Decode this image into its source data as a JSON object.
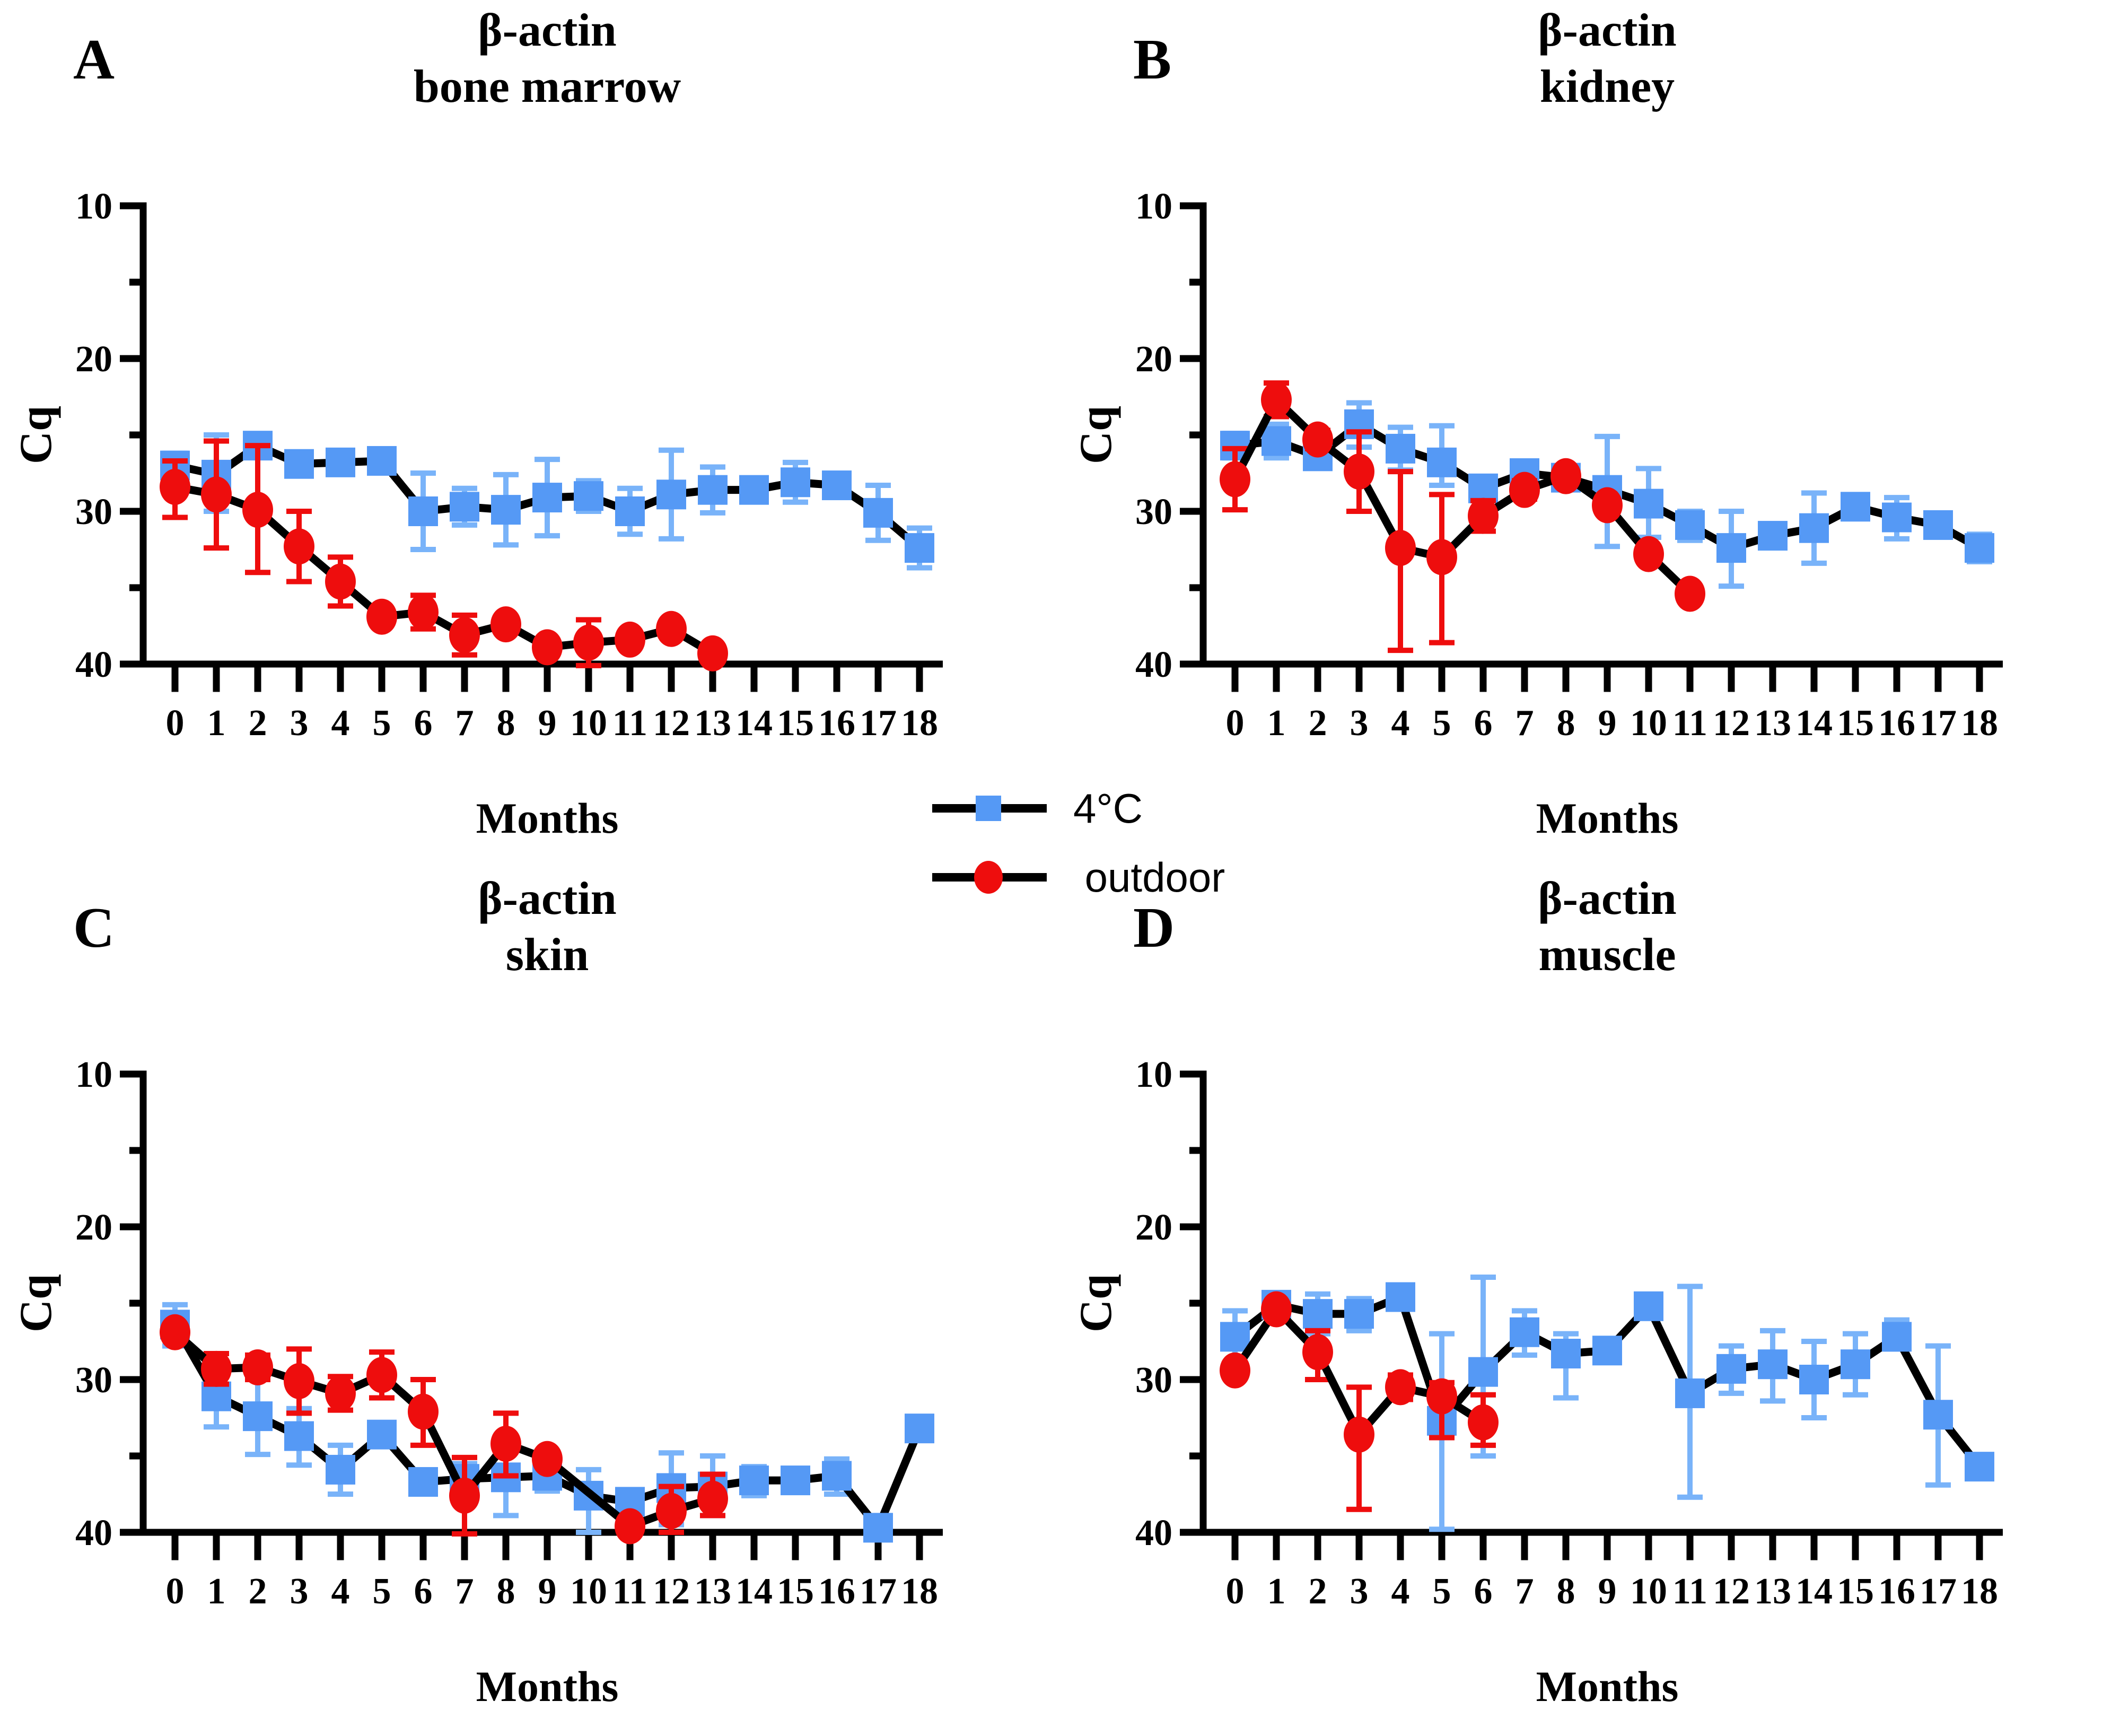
{
  "legend": {
    "items": [
      {
        "label": "4°C",
        "marker": "square",
        "color": "#5599F5",
        "line_color": "#000000"
      },
      {
        "label": " outdoor",
        "marker": "circle",
        "color": "#EE0D0D",
        "line_color": "#000000"
      }
    ]
  },
  "chart_data": [
    {
      "type": "line",
      "panel_label": "A",
      "title": [
        "β-actin",
        "bone marrow"
      ],
      "xlabel": "Months",
      "ylabel": "Cq",
      "ylim": [
        10,
        40
      ],
      "y_inverted": true,
      "yticks": [
        10,
        20,
        30,
        40
      ],
      "yminorticks": [
        15,
        25,
        35
      ],
      "xticks": [
        0,
        1,
        2,
        3,
        4,
        5,
        6,
        7,
        8,
        9,
        10,
        11,
        12,
        13,
        14,
        15,
        16,
        17,
        18
      ],
      "series": [
        {
          "name": "4°C",
          "marker": "square",
          "color": "#5599F5",
          "err_color": "#79B3F9",
          "points": [
            [
              0,
              27.0,
              26.2,
              27.8
            ],
            [
              1,
              27.6,
              25.0,
              30.0
            ],
            [
              2,
              25.7,
              25.2,
              26.3
            ],
            [
              3,
              26.9,
              26.5,
              27.3
            ],
            [
              4,
              26.8,
              26.1,
              27.5
            ],
            [
              5,
              26.7,
              26.3,
              27.1
            ],
            [
              6,
              30.0,
              27.5,
              32.5
            ],
            [
              7,
              29.7,
              28.5,
              30.9
            ],
            [
              8,
              29.9,
              27.6,
              32.2
            ],
            [
              9,
              29.1,
              26.6,
              31.6
            ],
            [
              10,
              29.0,
              28.0,
              30.0
            ],
            [
              11,
              30.0,
              28.5,
              31.5
            ],
            [
              12,
              28.9,
              26.0,
              31.8
            ],
            [
              13,
              28.6,
              27.1,
              30.1
            ],
            [
              14,
              28.6,
              28.1,
              29.1
            ],
            [
              15,
              28.1,
              26.8,
              29.4
            ],
            [
              16,
              28.3,
              27.7,
              28.9
            ],
            [
              17,
              30.1,
              28.3,
              31.9
            ],
            [
              18,
              32.4,
              31.1,
              33.7
            ]
          ]
        },
        {
          "name": "outdoor",
          "marker": "circle",
          "color": "#EE0D0D",
          "err_color": "#EE0D0D",
          "points": [
            [
              0,
              28.4,
              26.7,
              30.4
            ],
            [
              1,
              28.9,
              25.4,
              32.4
            ],
            [
              2,
              29.9,
              25.7,
              34.0
            ],
            [
              3,
              32.3,
              30.0,
              34.6
            ],
            [
              4,
              34.6,
              33.0,
              36.2
            ],
            [
              5,
              36.9,
              36.9,
              36.9
            ],
            [
              6,
              36.6,
              35.5,
              37.7
            ],
            [
              7,
              38.1,
              36.8,
              39.4
            ],
            [
              8,
              37.4,
              37.4,
              37.4
            ],
            [
              9,
              38.9,
              38.9,
              38.9
            ],
            [
              10,
              38.6,
              37.1,
              40.1
            ],
            [
              11,
              38.4,
              38.4,
              38.4
            ],
            [
              12,
              37.7,
              37.7,
              37.7
            ],
            [
              13,
              39.3,
              39.3,
              39.3
            ]
          ]
        }
      ]
    },
    {
      "type": "line",
      "panel_label": "B",
      "title": [
        "β-actin",
        "kidney"
      ],
      "xlabel": "Months",
      "ylabel": "Cq",
      "ylim": [
        10,
        40
      ],
      "y_inverted": true,
      "yticks": [
        10,
        20,
        30,
        40
      ],
      "yminorticks": [
        15,
        25,
        35
      ],
      "xticks": [
        0,
        1,
        2,
        3,
        4,
        5,
        6,
        7,
        8,
        9,
        10,
        11,
        12,
        13,
        14,
        15,
        16,
        17,
        18
      ],
      "series": [
        {
          "name": "4°C",
          "marker": "square",
          "color": "#5599F5",
          "err_color": "#79B3F9",
          "points": [
            [
              0,
              25.7,
              24.9,
              26.5
            ],
            [
              1,
              25.4,
              24.3,
              26.5
            ],
            [
              2,
              26.4,
              25.8,
              27.1
            ],
            [
              3,
              24.3,
              22.9,
              25.8
            ],
            [
              4,
              25.9,
              24.5,
              27.3
            ],
            [
              5,
              26.8,
              24.4,
              28.3
            ],
            [
              6,
              28.5,
              28.0,
              29.0
            ],
            [
              7,
              27.5,
              26.9,
              28.1
            ],
            [
              8,
              27.8,
              27.2,
              28.4
            ],
            [
              9,
              28.6,
              25.1,
              32.3
            ],
            [
              10,
              29.5,
              27.2,
              31.7
            ],
            [
              11,
              30.9,
              30.0,
              31.9
            ],
            [
              12,
              32.4,
              30.0,
              34.9
            ],
            [
              13,
              31.6,
              31.6,
              31.6
            ],
            [
              14,
              31.1,
              28.8,
              33.4
            ],
            [
              15,
              29.7,
              29.0,
              30.4
            ],
            [
              16,
              30.4,
              29.1,
              31.8
            ],
            [
              17,
              30.9,
              30.9,
              30.9
            ],
            [
              18,
              32.4,
              31.5,
              33.3
            ]
          ]
        },
        {
          "name": "outdoor",
          "marker": "circle",
          "color": "#EE0D0D",
          "err_color": "#EE0D0D",
          "points": [
            [
              0,
              27.9,
              25.9,
              29.9
            ],
            [
              1,
              22.7,
              21.6,
              23.8
            ],
            [
              2,
              25.3,
              24.7,
              25.9
            ],
            [
              3,
              27.4,
              24.8,
              30.0
            ],
            [
              4,
              32.4,
              27.4,
              39.1
            ],
            [
              5,
              33.0,
              28.9,
              38.6
            ],
            [
              6,
              30.3,
              29.3,
              31.3
            ],
            [
              7,
              28.6,
              28.0,
              29.2
            ],
            [
              8,
              27.7,
              27.2,
              28.2
            ],
            [
              9,
              29.6,
              29.6,
              29.6
            ],
            [
              10,
              32.8,
              32.8,
              32.8
            ],
            [
              11,
              35.4,
              35.4,
              35.4
            ]
          ]
        }
      ]
    },
    {
      "type": "line",
      "panel_label": "C",
      "title": [
        "β-actin",
        "skin"
      ],
      "xlabel": "Months",
      "ylabel": "Cq",
      "ylim": [
        10,
        40
      ],
      "y_inverted": true,
      "yticks": [
        10,
        20,
        30,
        40
      ],
      "yminorticks": [
        15,
        25,
        35
      ],
      "xticks": [
        0,
        1,
        2,
        3,
        4,
        5,
        6,
        7,
        8,
        9,
        10,
        11,
        12,
        13,
        14,
        15,
        16,
        17,
        18
      ],
      "series": [
        {
          "name": "4°C",
          "marker": "square",
          "color": "#5599F5",
          "err_color": "#79B3F9",
          "points": [
            [
              0,
              26.4,
              25.1,
              27.8
            ],
            [
              1,
              31.1,
              29.0,
              33.1
            ],
            [
              2,
              32.4,
              29.8,
              34.9
            ],
            [
              3,
              33.7,
              31.9,
              35.6
            ],
            [
              4,
              35.9,
              34.3,
              37.5
            ],
            [
              5,
              33.6,
              33.0,
              34.2
            ],
            [
              6,
              36.7,
              36.7,
              36.7
            ],
            [
              7,
              36.5,
              35.5,
              37.5
            ],
            [
              8,
              36.4,
              34.1,
              38.9
            ],
            [
              9,
              36.3,
              35.3,
              37.3
            ],
            [
              10,
              37.6,
              35.9,
              40.0
            ],
            [
              11,
              38.0,
              38.0,
              38.0
            ],
            [
              12,
              37.1,
              34.8,
              39.5
            ],
            [
              13,
              37.0,
              35.0,
              38.9
            ],
            [
              14,
              36.6,
              35.7,
              37.6
            ],
            [
              15,
              36.6,
              36.6,
              36.6
            ],
            [
              16,
              36.3,
              35.2,
              37.5
            ],
            [
              17,
              39.7,
              39.7,
              39.7
            ],
            [
              18,
              33.2,
              33.2,
              33.2
            ]
          ]
        },
        {
          "name": "outdoor",
          "marker": "circle",
          "color": "#EE0D0D",
          "err_color": "#EE0D0D",
          "points": [
            [
              0,
              26.9,
              26.4,
              27.4
            ],
            [
              1,
              29.3,
              28.3,
              30.3
            ],
            [
              2,
              29.2,
              28.4,
              30.0
            ],
            [
              3,
              30.1,
              28.0,
              32.2
            ],
            [
              4,
              30.9,
              29.8,
              32.0
            ],
            [
              5,
              29.7,
              28.2,
              31.2
            ],
            [
              6,
              32.1,
              30.0,
              34.3
            ],
            [
              7,
              37.6,
              35.1,
              40.1
            ],
            [
              8,
              34.2,
              32.2,
              36.3
            ],
            [
              9,
              35.2,
              34.7,
              35.7
            ],
            [
              11,
              39.6,
              39.6,
              39.6
            ],
            [
              12,
              38.6,
              37.0,
              40.0
            ],
            [
              13,
              37.8,
              36.2,
              38.9
            ]
          ]
        }
      ]
    },
    {
      "type": "line",
      "panel_label": "D",
      "title": [
        "β-actin",
        "muscle"
      ],
      "xlabel": "Months",
      "ylabel": "Cq",
      "ylim": [
        10,
        40
      ],
      "y_inverted": true,
      "yticks": [
        10,
        20,
        30,
        40
      ],
      "yminorticks": [
        15,
        25,
        35
      ],
      "xticks": [
        0,
        1,
        2,
        3,
        4,
        5,
        6,
        7,
        8,
        9,
        10,
        11,
        12,
        13,
        14,
        15,
        16,
        17,
        18
      ],
      "series": [
        {
          "name": "4°C",
          "marker": "square",
          "color": "#5599F5",
          "err_color": "#79B3F9",
          "points": [
            [
              0,
              27.2,
              25.5,
              28.9
            ],
            [
              1,
              25.1,
              24.6,
              25.6
            ],
            [
              2,
              25.7,
              24.4,
              27.0
            ],
            [
              3,
              25.7,
              24.7,
              26.8
            ],
            [
              4,
              24.6,
              24.1,
              25.1
            ],
            [
              5,
              32.7,
              27.0,
              39.8
            ],
            [
              6,
              29.5,
              23.3,
              35.0
            ],
            [
              7,
              26.9,
              25.5,
              28.4
            ],
            [
              8,
              28.3,
              27.0,
              31.2
            ],
            [
              9,
              28.1,
              27.5,
              28.7
            ],
            [
              10,
              25.2,
              25.2,
              25.2
            ],
            [
              11,
              30.9,
              23.9,
              37.7
            ],
            [
              12,
              29.3,
              27.8,
              30.9
            ],
            [
              13,
              29.0,
              26.8,
              31.4
            ],
            [
              14,
              30.0,
              27.5,
              32.5
            ],
            [
              15,
              29.0,
              27.0,
              31.0
            ],
            [
              16,
              27.2,
              26.1,
              28.0
            ],
            [
              17,
              32.3,
              27.8,
              36.9
            ],
            [
              18,
              35.7,
              35.7,
              35.7
            ]
          ]
        },
        {
          "name": "outdoor",
          "marker": "circle",
          "color": "#EE0D0D",
          "err_color": "#EE0D0D",
          "points": [
            [
              0,
              29.4,
              28.9,
              29.9
            ],
            [
              1,
              25.4,
              25.0,
              25.9
            ],
            [
              2,
              28.2,
              26.8,
              30.0
            ],
            [
              3,
              33.6,
              30.5,
              38.5
            ],
            [
              4,
              30.5,
              29.7,
              31.3
            ],
            [
              5,
              31.1,
              30.2,
              33.8
            ],
            [
              6,
              32.8,
              31.0,
              34.3
            ]
          ]
        }
      ]
    }
  ]
}
